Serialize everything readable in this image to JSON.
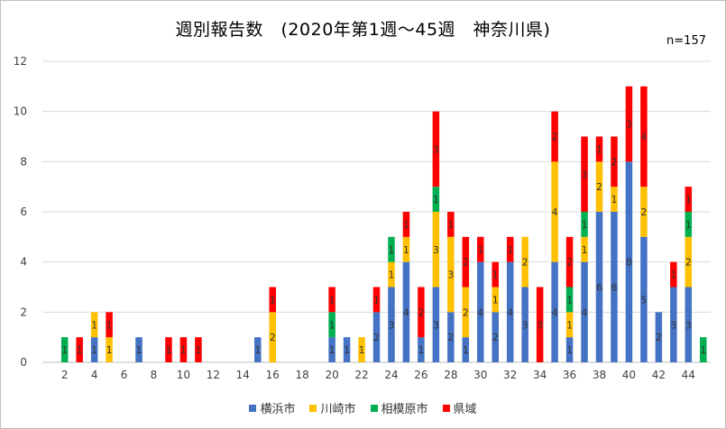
{
  "chart_data": {
    "type": "bar",
    "stacked": true,
    "title": "週別報告数　(2020年第1週～45週　神奈川県)",
    "note": "n=157",
    "xlabel": "",
    "ylabel": "",
    "ylim": [
      0,
      12
    ],
    "yticks": [
      0,
      2,
      4,
      6,
      8,
      10,
      12
    ],
    "xticks": [
      2,
      4,
      6,
      8,
      10,
      12,
      14,
      16,
      18,
      20,
      22,
      24,
      26,
      28,
      30,
      32,
      34,
      36,
      38,
      40,
      42,
      44
    ],
    "grid": true,
    "legend_position": "bottom",
    "categories": [
      1,
      2,
      3,
      4,
      5,
      6,
      7,
      8,
      9,
      10,
      11,
      12,
      13,
      14,
      15,
      16,
      17,
      18,
      19,
      20,
      21,
      22,
      23,
      24,
      25,
      26,
      27,
      28,
      29,
      30,
      31,
      32,
      33,
      34,
      35,
      36,
      37,
      38,
      39,
      40,
      41,
      42,
      43,
      44,
      45
    ],
    "series": [
      {
        "name": "横浜市",
        "color": "#4472c4",
        "values": [
          0,
          0,
          0,
          1,
          0,
          0,
          1,
          0,
          0,
          0,
          0,
          0,
          0,
          0,
          1,
          0,
          0,
          0,
          0,
          1,
          1,
          0,
          2,
          3,
          4,
          1,
          3,
          2,
          1,
          4,
          2,
          4,
          3,
          0,
          4,
          1,
          4,
          6,
          6,
          8,
          5,
          2,
          3,
          3,
          0
        ]
      },
      {
        "name": "川崎市",
        "color": "#ffc000",
        "values": [
          0,
          0,
          0,
          1,
          1,
          0,
          0,
          0,
          0,
          0,
          0,
          0,
          0,
          0,
          0,
          2,
          0,
          0,
          0,
          0,
          0,
          1,
          0,
          1,
          1,
          0,
          3,
          3,
          2,
          0,
          1,
          0,
          2,
          0,
          4,
          1,
          1,
          2,
          1,
          0,
          2,
          0,
          0,
          2,
          0
        ]
      },
      {
        "name": "相模原市",
        "color": "#00b050",
        "values": [
          0,
          1,
          0,
          0,
          0,
          0,
          0,
          0,
          0,
          0,
          0,
          0,
          0,
          0,
          0,
          0,
          0,
          0,
          0,
          1,
          0,
          0,
          0,
          1,
          0,
          0,
          1,
          0,
          0,
          0,
          0,
          0,
          0,
          0,
          0,
          1,
          1,
          0,
          0,
          0,
          0,
          0,
          0,
          1,
          1
        ]
      },
      {
        "name": "県域",
        "color": "#ff0000",
        "values": [
          0,
          0,
          1,
          0,
          1,
          0,
          0,
          0,
          1,
          1,
          1,
          0,
          0,
          0,
          0,
          1,
          0,
          0,
          0,
          1,
          0,
          0,
          1,
          0,
          1,
          2,
          3,
          1,
          2,
          1,
          1,
          1,
          0,
          3,
          2,
          2,
          3,
          1,
          2,
          3,
          4,
          0,
          1,
          1,
          0
        ]
      }
    ]
  }
}
